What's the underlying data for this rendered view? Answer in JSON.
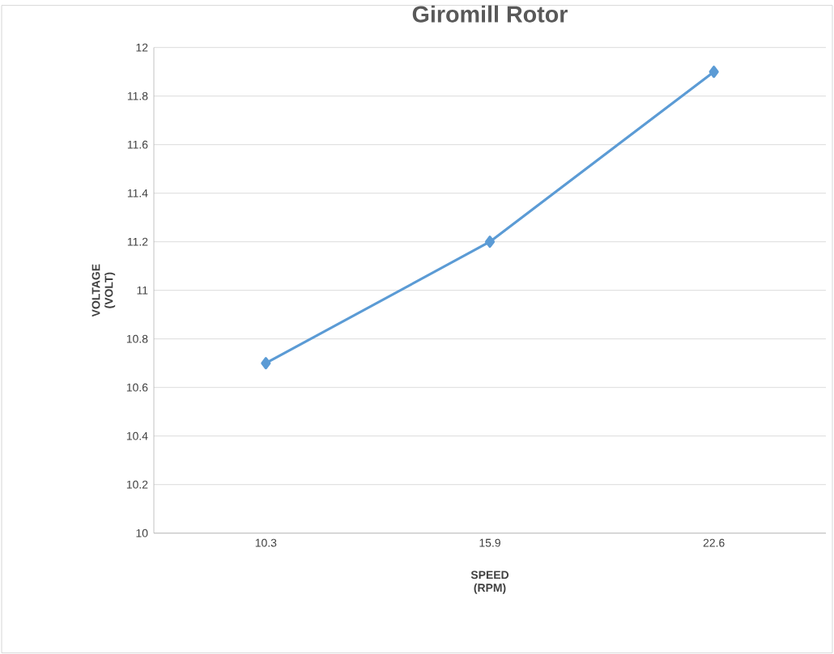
{
  "chart_data": {
    "type": "line",
    "title": "Giromill Rotor",
    "xlabel": "SPEED (RPM)",
    "ylabel": "VOLTAGE (VOLT)",
    "categories": [
      "10.3",
      "15.9",
      "22.6"
    ],
    "series": [
      {
        "color": "#5b9bd5",
        "values": [
          10.7,
          11.2,
          11.9
        ]
      }
    ],
    "ylim": [
      10,
      12
    ],
    "yticks": [
      10,
      10.2,
      10.4,
      10.6,
      10.8,
      11,
      11.2,
      11.4,
      11.6,
      11.8,
      12
    ],
    "grid": "y",
    "marker": "diamond",
    "line_style": "solid"
  }
}
